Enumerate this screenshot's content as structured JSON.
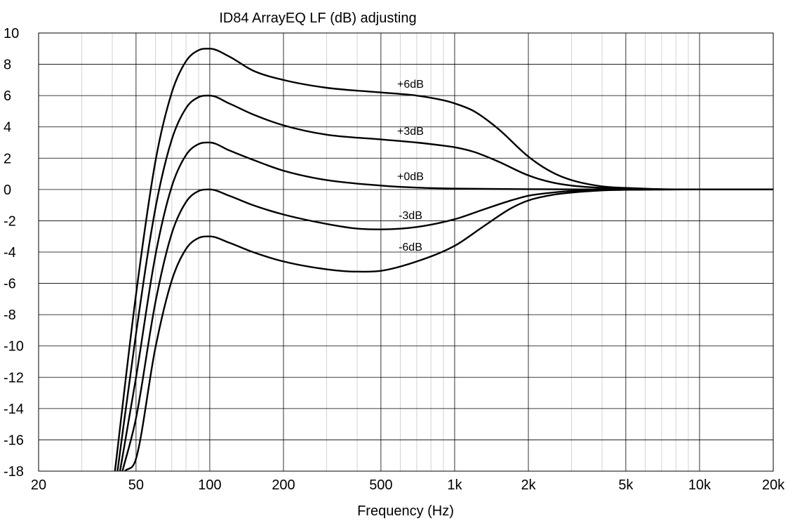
{
  "chart_data": {
    "type": "line",
    "title": "ID84 ArrayEQ LF (dB) adjusting",
    "xlabel": "Frequency (Hz)",
    "ylabel": "",
    "xscale": "log",
    "xlim": [
      20,
      20000
    ],
    "ylim": [
      -18,
      10
    ],
    "grid": true,
    "x_major_ticks": [
      20,
      50,
      100,
      200,
      500,
      1000,
      2000,
      5000,
      10000,
      20000
    ],
    "x_tick_labels": [
      "20",
      "50",
      "100",
      "200",
      "500",
      "1k",
      "2k",
      "5k",
      "10k",
      "20k"
    ],
    "x_minor_ticks": [
      30,
      40,
      60,
      70,
      80,
      90,
      300,
      400,
      600,
      700,
      800,
      900,
      3000,
      4000,
      6000,
      7000,
      8000,
      9000
    ],
    "y_ticks": [
      10,
      8,
      6,
      4,
      2,
      0,
      -2,
      -4,
      -6,
      -8,
      -10,
      -12,
      -14,
      -16,
      -18
    ],
    "y_tick_labels": [
      "10",
      "8",
      "6",
      "4",
      "2",
      "0",
      "-2",
      "-4",
      "-6",
      "-8",
      "-10",
      "-12",
      "-14",
      "-16",
      "-18"
    ],
    "series": [
      {
        "name": "+6dB",
        "label_at": [
          660,
          6.5
        ],
        "points": [
          [
            41,
            -18
          ],
          [
            50,
            -6.7
          ],
          [
            60,
            1.8
          ],
          [
            70,
            6.2
          ],
          [
            80,
            8.2
          ],
          [
            90,
            8.9
          ],
          [
            100,
            9.0
          ],
          [
            120,
            8.5
          ],
          [
            150,
            7.6
          ],
          [
            200,
            7.0
          ],
          [
            300,
            6.5
          ],
          [
            500,
            6.2
          ],
          [
            700,
            6.0
          ],
          [
            900,
            5.7
          ],
          [
            1000,
            5.5
          ],
          [
            1200,
            5.0
          ],
          [
            1500,
            3.9
          ],
          [
            2000,
            2.1
          ],
          [
            2500,
            1.1
          ],
          [
            3000,
            0.6
          ],
          [
            4000,
            0.2
          ],
          [
            5000,
            0.1
          ],
          [
            7000,
            0.02
          ],
          [
            10000,
            0.0
          ],
          [
            20000,
            0.0
          ]
        ]
      },
      {
        "name": "+3dB",
        "label_at": [
          660,
          3.5
        ],
        "points": [
          [
            42,
            -18
          ],
          [
            50,
            -9.2
          ],
          [
            60,
            -1.2
          ],
          [
            70,
            3.2
          ],
          [
            80,
            5.2
          ],
          [
            90,
            5.9
          ],
          [
            100,
            6.0
          ],
          [
            120,
            5.5
          ],
          [
            150,
            4.8
          ],
          [
            200,
            4.1
          ],
          [
            300,
            3.5
          ],
          [
            500,
            3.2
          ],
          [
            700,
            3.0
          ],
          [
            900,
            2.8
          ],
          [
            1000,
            2.7
          ],
          [
            1200,
            2.4
          ],
          [
            1500,
            1.8
          ],
          [
            2000,
            0.9
          ],
          [
            2500,
            0.45
          ],
          [
            3000,
            0.25
          ],
          [
            4000,
            0.1
          ],
          [
            5000,
            0.05
          ],
          [
            7000,
            0.01
          ],
          [
            10000,
            0.0
          ],
          [
            20000,
            0.0
          ]
        ]
      },
      {
        "name": "+0dB",
        "label_at": [
          660,
          0.6
        ],
        "points": [
          [
            43,
            -18
          ],
          [
            50,
            -12.0
          ],
          [
            60,
            -4.2
          ],
          [
            70,
            0.2
          ],
          [
            80,
            2.2
          ],
          [
            90,
            2.9
          ],
          [
            100,
            3.0
          ],
          [
            120,
            2.5
          ],
          [
            150,
            1.9
          ],
          [
            200,
            1.2
          ],
          [
            300,
            0.6
          ],
          [
            500,
            0.25
          ],
          [
            700,
            0.12
          ],
          [
            1000,
            0.06
          ],
          [
            2000,
            0.02
          ],
          [
            5000,
            0.0
          ],
          [
            10000,
            0.0
          ],
          [
            20000,
            0.0
          ]
        ]
      },
      {
        "name": "-3dB",
        "label_at": [
          660,
          -1.9
        ],
        "points": [
          [
            44,
            -18
          ],
          [
            50,
            -14.6
          ],
          [
            60,
            -7.2
          ],
          [
            70,
            -2.8
          ],
          [
            80,
            -0.8
          ],
          [
            90,
            -0.1
          ],
          [
            100,
            0.0
          ],
          [
            120,
            -0.4
          ],
          [
            150,
            -1.0
          ],
          [
            200,
            -1.6
          ],
          [
            300,
            -2.2
          ],
          [
            400,
            -2.5
          ],
          [
            500,
            -2.55
          ],
          [
            700,
            -2.4
          ],
          [
            1000,
            -1.9
          ],
          [
            1300,
            -1.3
          ],
          [
            1700,
            -0.7
          ],
          [
            2000,
            -0.4
          ],
          [
            2500,
            -0.2
          ],
          [
            3000,
            -0.1
          ],
          [
            5000,
            -0.02
          ],
          [
            10000,
            0.0
          ],
          [
            20000,
            0.0
          ]
        ]
      },
      {
        "name": "-6dB",
        "label_at": [
          660,
          -3.9
        ],
        "points": [
          [
            45,
            -18
          ],
          [
            50,
            -17.2
          ],
          [
            60,
            -10.1
          ],
          [
            70,
            -5.8
          ],
          [
            80,
            -3.8
          ],
          [
            90,
            -3.1
          ],
          [
            100,
            -3.0
          ],
          [
            120,
            -3.4
          ],
          [
            150,
            -4.0
          ],
          [
            200,
            -4.6
          ],
          [
            300,
            -5.1
          ],
          [
            400,
            -5.25
          ],
          [
            500,
            -5.2
          ],
          [
            700,
            -4.6
          ],
          [
            1000,
            -3.6
          ],
          [
            1300,
            -2.4
          ],
          [
            1700,
            -1.2
          ],
          [
            2000,
            -0.7
          ],
          [
            2500,
            -0.35
          ],
          [
            3000,
            -0.2
          ],
          [
            4000,
            -0.06
          ],
          [
            5000,
            -0.02
          ],
          [
            10000,
            0.0
          ],
          [
            20000,
            0.0
          ]
        ]
      }
    ]
  }
}
